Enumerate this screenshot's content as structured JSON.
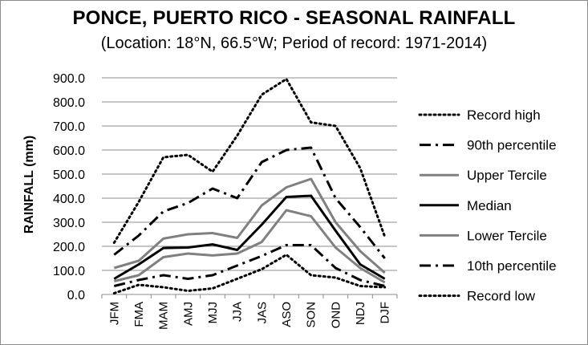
{
  "chart_data": {
    "type": "line",
    "title": "PONCE, PUERTO RICO - SEASONAL RAINFALL",
    "subtitle": "(Location: 18°N, 66.5°W; Period of record: 1971-2014)",
    "xlabel": "",
    "ylabel": "RAINFALL (mm)",
    "ylim": [
      0,
      900
    ],
    "ytick_step": 100,
    "ytick_labels": [
      "0.0",
      "100.0",
      "200.0",
      "300.0",
      "400.0",
      "500.0",
      "600.0",
      "700.0",
      "800.0",
      "900.0"
    ],
    "grid": "horizontal",
    "legend_position": "right",
    "categories": [
      "JFM",
      "FMA",
      "MAM",
      "AMJ",
      "MJJ",
      "JJA",
      "JAS",
      "ASO",
      "SON",
      "OND",
      "NDJ",
      "DJF"
    ],
    "series": [
      {
        "name": "Record high",
        "color": "#000000",
        "style": "dotted",
        "values": [
          215,
          385,
          570,
          580,
          510,
          660,
          830,
          895,
          715,
          700,
          525,
          240
        ]
      },
      {
        "name": "90th percentile",
        "color": "#000000",
        "style": "long-dash-dot",
        "values": [
          165,
          245,
          345,
          380,
          440,
          400,
          550,
          600,
          610,
          400,
          280,
          150
        ]
      },
      {
        "name": "Upper Tercile",
        "color": "#808080",
        "style": "solid",
        "values": [
          110,
          140,
          232,
          250,
          255,
          235,
          370,
          445,
          480,
          300,
          180,
          90
        ]
      },
      {
        "name": "Median",
        "color": "#000000",
        "style": "solid",
        "values": [
          65,
          125,
          193,
          195,
          208,
          185,
          290,
          405,
          410,
          265,
          125,
          65
        ]
      },
      {
        "name": "Lower Tercile",
        "color": "#808080",
        "style": "solid",
        "values": [
          55,
          80,
          155,
          170,
          162,
          170,
          218,
          350,
          325,
          195,
          110,
          50
        ]
      },
      {
        "name": "10th percentile",
        "color": "#000000",
        "style": "long-dash-dot",
        "values": [
          35,
          60,
          80,
          65,
          80,
          120,
          160,
          205,
          205,
          110,
          60,
          35
        ]
      },
      {
        "name": "Record low",
        "color": "#000000",
        "style": "dotted",
        "values": [
          5,
          40,
          30,
          15,
          25,
          65,
          105,
          165,
          80,
          70,
          35,
          30
        ]
      }
    ]
  }
}
